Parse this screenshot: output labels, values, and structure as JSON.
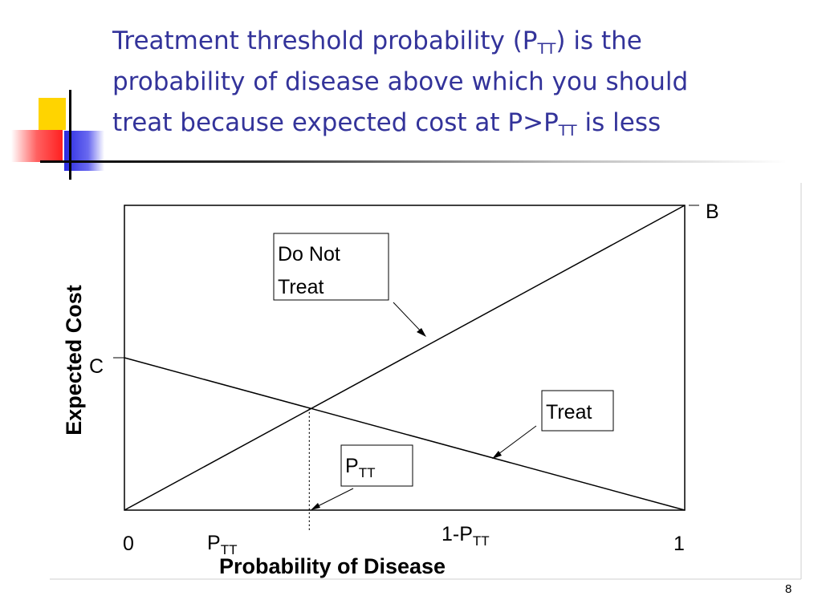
{
  "slide": {
    "title_lines": [
      {
        "pre": "Treatment threshold probability (P",
        "sub": "TT",
        "post": ") is the"
      },
      {
        "pre": "probability of disease above which you should",
        "sub": "",
        "post": ""
      },
      {
        "pre": "treat because expected cost at P>P",
        "sub": "TT",
        "post": " is less"
      }
    ],
    "number": "8"
  },
  "colors": {
    "title": "#33339a",
    "deco_yellow": "#ffd400",
    "deco_blue": "#2a2ae0",
    "deco_red": "#ff4040"
  },
  "chart_data": {
    "type": "line",
    "xlabel": "Probability of Disease",
    "ylabel": "Expected Cost",
    "xlim": [
      0,
      1
    ],
    "x_tick_labels": {
      "start": "0",
      "end": "1"
    },
    "x_markers": [
      {
        "main": "P",
        "sub": "TT"
      },
      {
        "main": "1-P",
        "sub": "TT"
      }
    ],
    "y_markers": {
      "c": "C",
      "b": "B"
    },
    "y_values": {
      "c": 0.5,
      "b": 1.0
    },
    "threshold_p": 0.33,
    "series": [
      {
        "name": "Do Not Treat",
        "x": [
          0,
          1
        ],
        "y": [
          0,
          1.0
        ]
      },
      {
        "name": "Treat",
        "x": [
          0,
          1
        ],
        "y": [
          0.5,
          0
        ]
      }
    ],
    "annotations": {
      "do_not_treat": [
        "Do Not",
        "Treat"
      ],
      "treat": "Treat",
      "ptt": {
        "main": "P",
        "sub": "TT"
      }
    }
  }
}
